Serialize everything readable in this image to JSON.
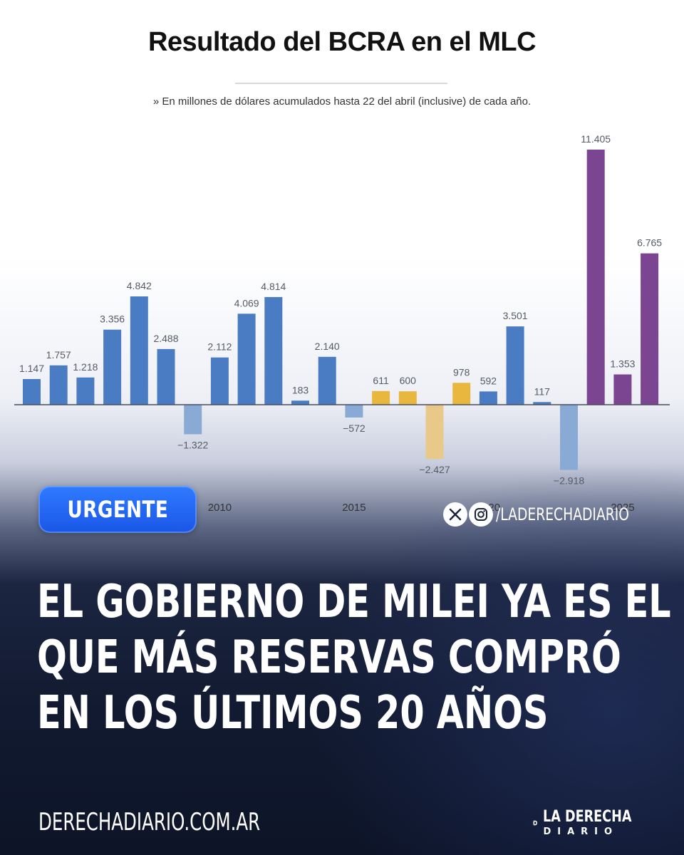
{
  "chart_data": {
    "type": "bar",
    "title": "Resultado del BCRA en el MLC",
    "subtitle": "» En millones de dólares acumulados hasta 22 del abril (inclusive) de cada año.",
    "x": [
      2003,
      2004,
      2005,
      2006,
      2007,
      2008,
      2009,
      2010,
      2011,
      2012,
      2013,
      2014,
      2015,
      2016,
      2017,
      2018,
      2019,
      2020,
      2021,
      2022,
      2023,
      2024,
      2025,
      2026
    ],
    "values": [
      1147,
      1757,
      1218,
      3356,
      4842,
      2488,
      -1322,
      2112,
      4069,
      4814,
      183,
      2140,
      -572,
      611,
      600,
      -2427,
      978,
      592,
      3501,
      117,
      -2918,
      11405,
      1353,
      6765
    ],
    "value_labels": [
      "1.147",
      "1.757",
      "1.218",
      "3.356",
      "4.842",
      "2.488",
      "−1.322",
      "2.112",
      "4.069",
      "4.814",
      "183",
      "2.140",
      "−572",
      "611",
      "600",
      "−2.427",
      "978",
      "592",
      "3.501",
      "117",
      "−2.918",
      "11.405",
      "1.353",
      "6.765"
    ],
    "group": [
      "kirchner",
      "kirchner",
      "kirchner",
      "kirchner",
      "kirchner",
      "kirchner",
      "kirchner",
      "kirchner",
      "kirchner",
      "kirchner",
      "kirchner",
      "kirchner",
      "kirchner",
      "macri",
      "macri",
      "macri",
      "macri",
      "fernandez",
      "fernandez",
      "fernandez",
      "fernandez",
      "milei",
      "milei",
      "milei"
    ],
    "colors": {
      "kirchner": "#4a7cc4",
      "kirchner_negative": "#8aaad6",
      "macri": "#e8b83e",
      "macri_negative": "#e8c98a",
      "fernandez": "#4a7cc4",
      "fernandez_negative": "#8aaad6",
      "milei": "#7b4591"
    },
    "xtick_labels": [
      {
        "year": 2010,
        "label": "2010"
      },
      {
        "year": 2015,
        "label": "2015"
      },
      {
        "year": 2020,
        "label": "2020"
      },
      {
        "year": 2025,
        "label": "2025"
      }
    ],
    "ylim": [
      -3000,
      11800
    ],
    "grid": false,
    "legend": "none"
  },
  "badge": {
    "label": "URGENTE"
  },
  "social": {
    "handle": "/LADERECHADIARIO",
    "icons": [
      "x-icon",
      "instagram-icon"
    ]
  },
  "headline": {
    "lines": [
      "EL GOBIERNO DE MILEI YA ES EL",
      "QUE MÁS RESERVAS COMPRÓ",
      "EN LOS ÚLTIMOS 20 AÑOS"
    ]
  },
  "footer": {
    "site": "DERECHADIARIO.COM.AR",
    "brand_line1": "LA DERECHA",
    "brand_line2": "DIARIO"
  }
}
